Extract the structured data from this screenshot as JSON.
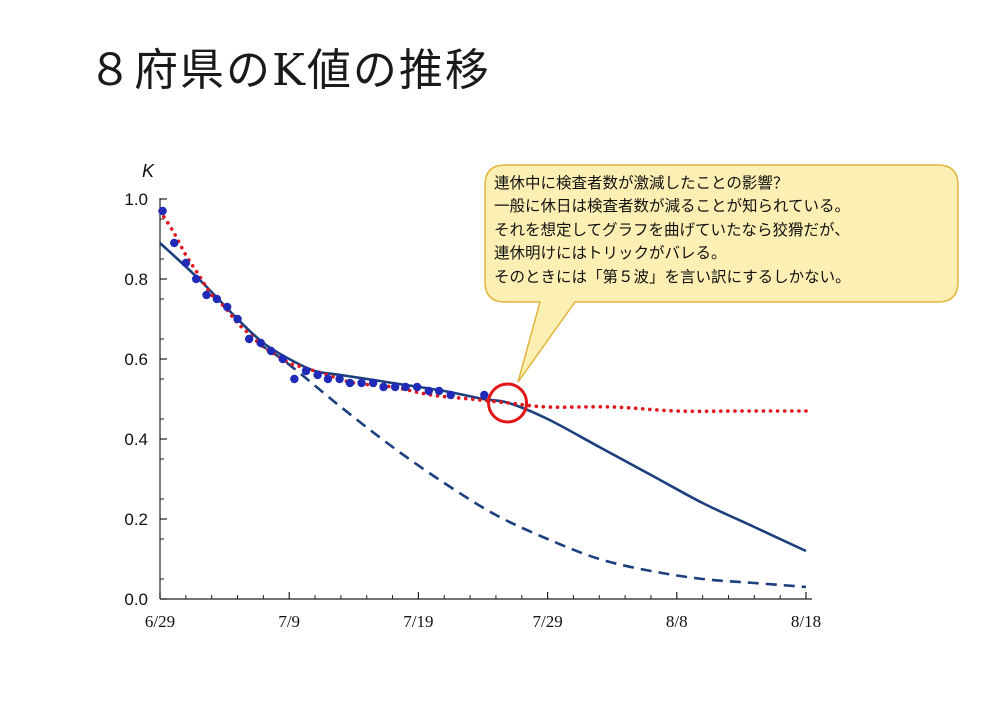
{
  "page": {
    "title": "８府県のK値の推移"
  },
  "colors": {
    "axis": "#222222",
    "series_blue": "#1c3f7d",
    "dots": "#1f2bb8",
    "red_dotted": "#e0161b",
    "callout_fill": "#fcefb3",
    "callout_stroke": "#e2b43c",
    "highlight_circle": "#e0161b"
  },
  "callout": {
    "lines": [
      "連休中に検査者数が激減したことの影響？",
      "一般に休日は検査者数が減ることが知られている。",
      "それを想定してグラフを曲げていたなら狡猾だが、",
      "連休明けにはトリックがバレる。",
      "そのときには「第５波」を言い訳にするしかない。"
    ]
  },
  "chart_data": {
    "type": "scatter",
    "title": "",
    "ylabel": "K",
    "xlabel": "",
    "x_ticks": [
      "6/29",
      "7/9",
      "7/19",
      "7/29",
      "8/8",
      "8/18"
    ],
    "x_tick_days": [
      0,
      10,
      20,
      30,
      40,
      50
    ],
    "y_ticks": [
      "0.0",
      "0.2",
      "0.4",
      "0.6",
      "0.8",
      "1.0"
    ],
    "y_tick_values": [
      0.0,
      0.2,
      0.4,
      0.6,
      0.8,
      1.0
    ],
    "xlim_days": [
      0,
      50
    ],
    "ylim": [
      0,
      1.0
    ],
    "grid": false,
    "highlight": {
      "day": 26.9,
      "value": 0.49
    },
    "series": [
      {
        "kind": "points",
        "style": "markers",
        "points": [
          [
            0.2,
            0.97
          ],
          [
            1.1,
            0.89
          ],
          [
            2.0,
            0.84
          ],
          [
            2.8,
            0.8
          ],
          [
            3.6,
            0.76
          ],
          [
            4.4,
            0.75
          ],
          [
            5.2,
            0.73
          ],
          [
            6.0,
            0.7
          ],
          [
            6.9,
            0.65
          ],
          [
            7.8,
            0.64
          ],
          [
            8.6,
            0.62
          ],
          [
            9.5,
            0.6
          ],
          [
            10.4,
            0.55
          ],
          [
            11.3,
            0.57
          ],
          [
            12.2,
            0.56
          ],
          [
            13.0,
            0.55
          ],
          [
            13.9,
            0.55
          ],
          [
            14.7,
            0.54
          ],
          [
            15.6,
            0.54
          ],
          [
            16.5,
            0.54
          ],
          [
            17.3,
            0.53
          ],
          [
            18.2,
            0.53
          ],
          [
            19.0,
            0.53
          ],
          [
            19.9,
            0.53
          ],
          [
            20.8,
            0.52
          ],
          [
            21.6,
            0.52
          ],
          [
            22.5,
            0.51
          ],
          [
            25.1,
            0.51
          ]
        ]
      },
      {
        "kind": "line",
        "style": "solid",
        "points": [
          [
            0,
            0.89
          ],
          [
            3,
            0.8
          ],
          [
            6,
            0.7
          ],
          [
            8,
            0.64
          ],
          [
            10,
            0.6
          ],
          [
            12,
            0.57
          ],
          [
            14,
            0.56
          ],
          [
            18,
            0.54
          ],
          [
            22,
            0.52
          ],
          [
            25,
            0.5
          ],
          [
            27,
            0.49
          ],
          [
            30,
            0.45
          ],
          [
            34,
            0.38
          ],
          [
            38,
            0.31
          ],
          [
            42,
            0.24
          ],
          [
            46,
            0.18
          ],
          [
            50,
            0.12
          ]
        ]
      },
      {
        "kind": "line",
        "style": "dashed",
        "points": [
          [
            7.5,
            0.64
          ],
          [
            9,
            0.61
          ],
          [
            11,
            0.56
          ],
          [
            14,
            0.48
          ],
          [
            18,
            0.38
          ],
          [
            22,
            0.29
          ],
          [
            26,
            0.21
          ],
          [
            30,
            0.15
          ],
          [
            34,
            0.1
          ],
          [
            38,
            0.07
          ],
          [
            42,
            0.05
          ],
          [
            46,
            0.04
          ],
          [
            50,
            0.03
          ]
        ]
      },
      {
        "kind": "line",
        "style": "dotted",
        "points": [
          [
            0,
            0.97
          ],
          [
            1,
            0.92
          ],
          [
            2,
            0.86
          ],
          [
            3,
            0.81
          ],
          [
            4,
            0.76
          ],
          [
            5,
            0.73
          ],
          [
            6,
            0.69
          ],
          [
            7,
            0.66
          ],
          [
            8,
            0.63
          ],
          [
            9,
            0.61
          ],
          [
            10,
            0.59
          ],
          [
            11,
            0.58
          ],
          [
            12,
            0.57
          ],
          [
            13,
            0.56
          ],
          [
            15,
            0.54
          ],
          [
            18,
            0.53
          ],
          [
            21,
            0.51
          ],
          [
            24,
            0.5
          ],
          [
            27,
            0.49
          ],
          [
            30,
            0.48
          ],
          [
            35,
            0.48
          ],
          [
            40,
            0.47
          ],
          [
            45,
            0.47
          ],
          [
            50,
            0.47
          ]
        ]
      }
    ]
  }
}
